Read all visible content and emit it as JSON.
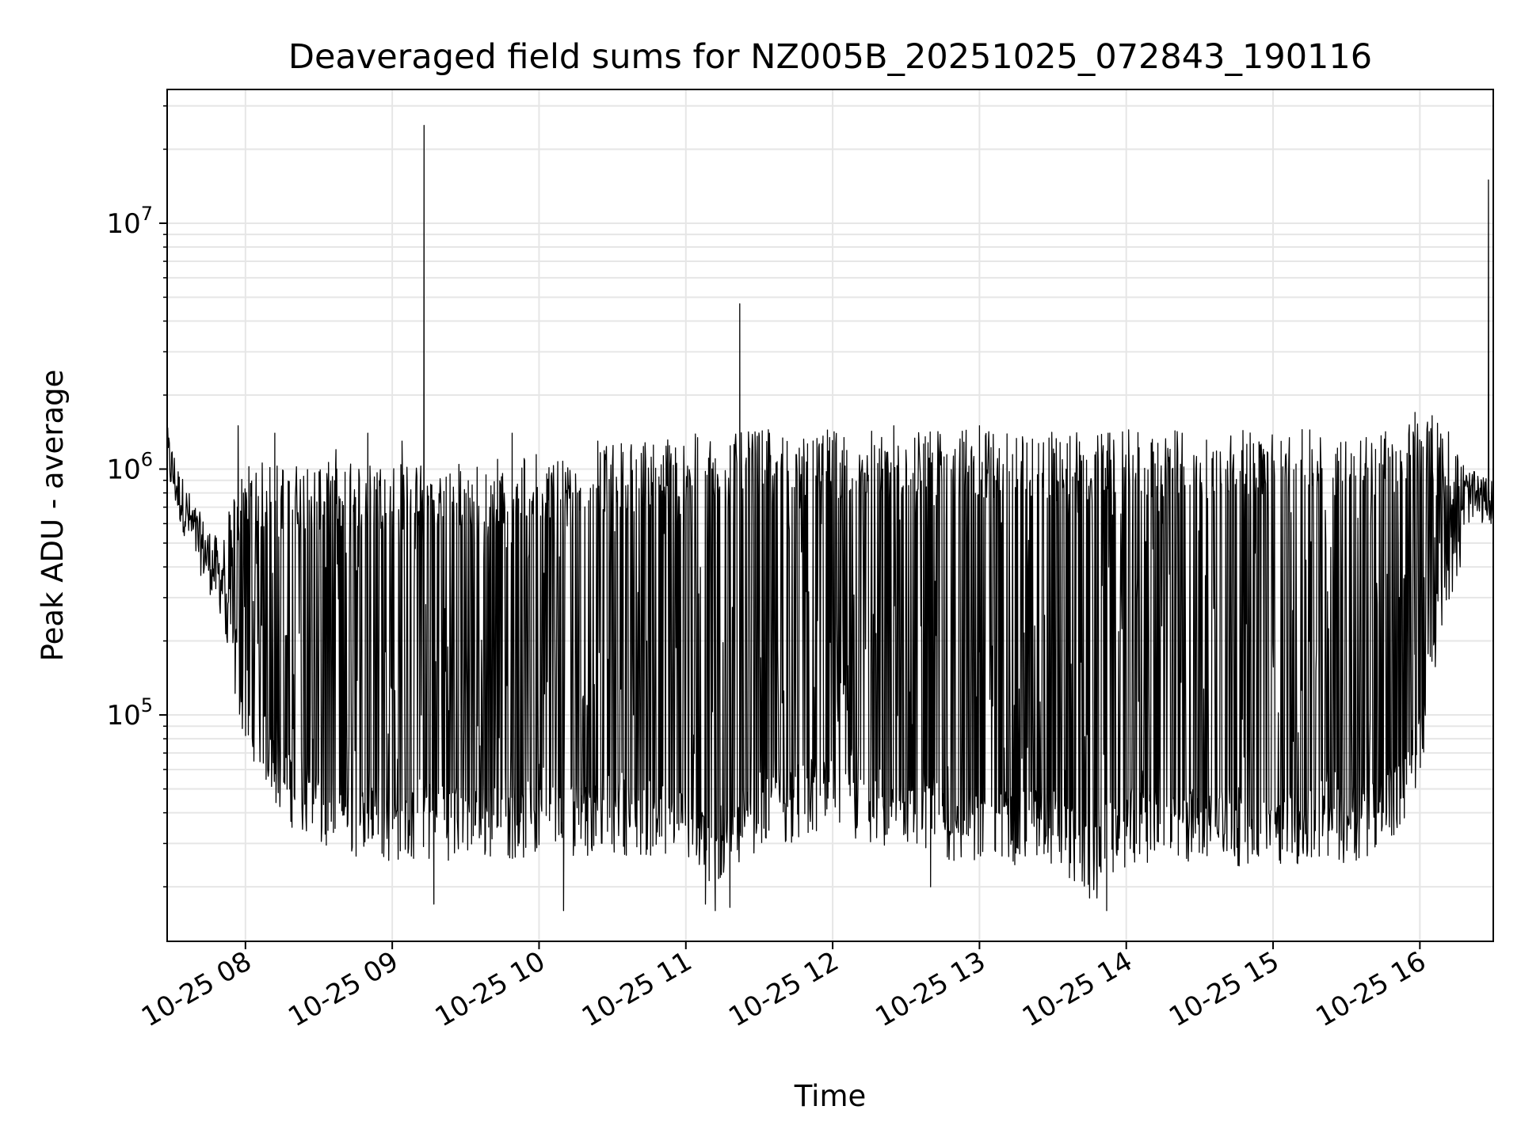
{
  "chart_data": {
    "type": "line",
    "title": "Deaveraged field sums for NZ005B_20251025_072843_190116",
    "xlabel": "Time",
    "ylabel": "Peak ADU - average",
    "yscale": "log",
    "ylim": [
      12000,
      35000000
    ],
    "xlim": [
      "2025-10-25 07:28",
      "2025-10-25 16:30"
    ],
    "grid": true,
    "x_ticks": [
      {
        "value": "2025-10-25 08:00",
        "label": "10-25 08"
      },
      {
        "value": "2025-10-25 09:00",
        "label": "10-25 09"
      },
      {
        "value": "2025-10-25 10:00",
        "label": "10-25 10"
      },
      {
        "value": "2025-10-25 11:00",
        "label": "10-25 11"
      },
      {
        "value": "2025-10-25 12:00",
        "label": "10-25 12"
      },
      {
        "value": "2025-10-25 13:00",
        "label": "10-25 13"
      },
      {
        "value": "2025-10-25 14:00",
        "label": "10-25 14"
      },
      {
        "value": "2025-10-25 15:00",
        "label": "10-25 15"
      },
      {
        "value": "2025-10-25 16:00",
        "label": "10-25 16"
      }
    ],
    "y_ticks": [
      {
        "value": 100000,
        "base": "10",
        "exp": "5"
      },
      {
        "value": 1000000,
        "base": "10",
        "exp": "6"
      },
      {
        "value": 10000000,
        "base": "10",
        "exp": "7"
      }
    ],
    "line_color": "#000000",
    "grid_color": "#e6e6e6",
    "series": [
      {
        "name": "",
        "envelope": {
          "x": [
            "2025-10-25 07:28",
            "2025-10-25 07:33",
            "2025-10-25 07:40",
            "2025-10-25 07:50",
            "2025-10-25 08:00",
            "2025-10-25 08:15",
            "2025-10-25 08:30",
            "2025-10-25 09:00",
            "2025-10-25 09:30",
            "2025-10-25 10:00",
            "2025-10-25 10:30",
            "2025-10-25 11:00",
            "2025-10-25 11:10",
            "2025-10-25 11:20",
            "2025-10-25 11:30",
            "2025-10-25 12:00",
            "2025-10-25 12:30",
            "2025-10-25 13:00",
            "2025-10-25 13:30",
            "2025-10-25 13:45",
            "2025-10-25 14:00",
            "2025-10-25 14:30",
            "2025-10-25 15:00",
            "2025-10-25 15:30",
            "2025-10-25 15:50",
            "2025-10-25 16:00",
            "2025-10-25 16:05",
            "2025-10-25 16:10",
            "2025-10-25 16:20",
            "2025-10-25 16:30"
          ],
          "low": [
            900000,
            600000,
            400000,
            250000,
            100000,
            50000,
            36000,
            33000,
            34000,
            34000,
            36000,
            33000,
            25000,
            30000,
            38000,
            42000,
            33000,
            32000,
            32000,
            24000,
            32000,
            32000,
            32000,
            32000,
            40000,
            70000,
            150000,
            350000,
            600000,
            600000
          ],
          "high": [
            1500000,
            1000000,
            700000,
            500000,
            1000000,
            1000000,
            1000000,
            1000000,
            1000000,
            1100000,
            1200000,
            1300000,
            1300000,
            1300000,
            1350000,
            1350000,
            1350000,
            1350000,
            1350000,
            1300000,
            1350000,
            1350000,
            1350000,
            1350000,
            1400000,
            1500000,
            1500000,
            1500000,
            1000000,
            900000
          ]
        },
        "spikes": [
          {
            "x": "2025-10-25 09:13",
            "y": 25000000
          },
          {
            "x": "2025-10-25 11:22",
            "y": 4700000
          },
          {
            "x": "2025-10-25 16:28",
            "y": 15000000
          },
          {
            "x": "2025-10-25 07:57",
            "y": 1500000
          },
          {
            "x": "2025-10-25 08:12",
            "y": 1400000
          },
          {
            "x": "2025-10-25 08:37",
            "y": 1200000
          },
          {
            "x": "2025-10-25 08:50",
            "y": 1400000
          },
          {
            "x": "2025-10-25 09:04",
            "y": 1300000
          },
          {
            "x": "2025-10-25 09:49",
            "y": 1400000
          },
          {
            "x": "2025-10-25 10:24",
            "y": 1300000
          },
          {
            "x": "2025-10-25 11:30",
            "y": 1350000
          },
          {
            "x": "2025-10-25 12:25",
            "y": 1500000
          },
          {
            "x": "2025-10-25 13:00",
            "y": 1500000
          },
          {
            "x": "2025-10-25 15:58",
            "y": 1700000
          },
          {
            "x": "2025-10-25 16:05",
            "y": 1650000
          }
        ],
        "dips": [
          {
            "x": "2025-10-25 09:17",
            "y": 17000
          },
          {
            "x": "2025-10-25 10:10",
            "y": 16000
          },
          {
            "x": "2025-10-25 11:08",
            "y": 17000
          },
          {
            "x": "2025-10-25 11:12",
            "y": 16000
          },
          {
            "x": "2025-10-25 11:18",
            "y": 16500
          },
          {
            "x": "2025-10-25 13:52",
            "y": 16000
          },
          {
            "x": "2025-10-25 13:45",
            "y": 18000
          },
          {
            "x": "2025-10-25 13:48",
            "y": 18000
          },
          {
            "x": "2025-10-25 12:40",
            "y": 20000
          }
        ]
      }
    ]
  }
}
